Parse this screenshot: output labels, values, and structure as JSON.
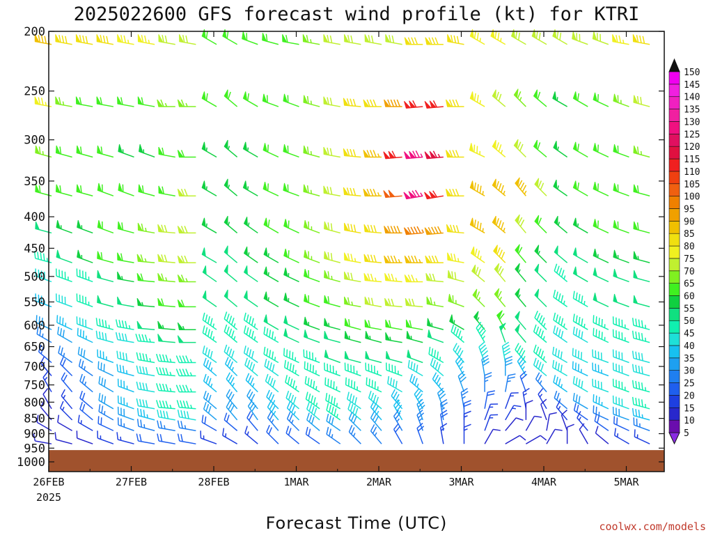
{
  "title": "2025022600 GFS forecast wind profile (kt) for KTRI",
  "credit": "coolwx.com/models",
  "chart_data": {
    "type": "wind-barb-time-height",
    "title": "2025022600 GFS forecast wind profile (kt) for KTRI",
    "xlabel": "Forecast Time (UTC)",
    "ylabel": "",
    "x_range_days": [
      "2025-02-26T00Z",
      "2025-03-05T12Z"
    ],
    "x_ticks": [
      {
        "label": "26FEB",
        "sub": "2025"
      },
      {
        "label": "27FEB",
        "sub": ""
      },
      {
        "label": "28FEB",
        "sub": ""
      },
      {
        "label": "1MAR",
        "sub": ""
      },
      {
        "label": "2MAR",
        "sub": ""
      },
      {
        "label": "3MAR",
        "sub": ""
      },
      {
        "label": "4MAR",
        "sub": ""
      },
      {
        "label": "5MAR",
        "sub": ""
      }
    ],
    "y_ticks": [
      "200",
      "250",
      "300",
      "350",
      "400",
      "450",
      "500",
      "550",
      "600",
      "650",
      "700",
      "750",
      "800",
      "850",
      "900",
      "950",
      "1000"
    ],
    "y_scale": "log-pressure",
    "ylim_hPa": [
      200,
      1000
    ],
    "colorbar": {
      "units": "kt",
      "labels": [
        "5",
        "10",
        "15",
        "20",
        "25",
        "30",
        "35",
        "40",
        "45",
        "50",
        "55",
        "60",
        "65",
        "70",
        "75",
        "80",
        "85",
        "90",
        "95",
        "100",
        "105",
        "110",
        "115",
        "120",
        "125",
        "130",
        "135",
        "140",
        "145",
        "150"
      ],
      "colors": [
        "#8a2be2",
        "#6a0dad",
        "#2828cc",
        "#1e3fe0",
        "#1f5fee",
        "#1f7ff0",
        "#1ea0f0",
        "#17c0f0",
        "#1ee0d8",
        "#10f0b0",
        "#10e080",
        "#10d040",
        "#40f020",
        "#80f020",
        "#c0f030",
        "#f0f020",
        "#f0e010",
        "#f0c000",
        "#f0a000",
        "#f08000",
        "#f06010",
        "#f04010",
        "#f02020",
        "#e01040",
        "#e01060",
        "#f01080",
        "#f020a0",
        "#f020c0",
        "#f020e0",
        "#f000f0"
      ]
    },
    "terrain_color": "#a0522d",
    "surface_pressure_hPa": 957,
    "levels_hPa": [
      210,
      265,
      320,
      370,
      425,
      475,
      510,
      560,
      610,
      640,
      690,
      725,
      770,
      820,
      855,
      890,
      935,
      955
    ],
    "x_sample_days": [
      0,
      0.25,
      0.5,
      0.75,
      1,
      1.25,
      1.5,
      1.75,
      2,
      2.25,
      2.5,
      2.75,
      3,
      3.25,
      3.5,
      3.75,
      4,
      4.25,
      4.5,
      4.75,
      5,
      5.25,
      5.5,
      5.75,
      6,
      6.25,
      6.5,
      6.75,
      7,
      7.25,
      7.5
    ],
    "wind_speed_kt": [
      [
        85,
        80,
        80,
        80,
        75,
        75,
        70,
        70,
        60,
        60,
        60,
        60,
        60,
        65,
        70,
        70,
        70,
        70,
        80,
        80,
        80,
        75,
        75,
        70,
        70,
        70,
        70,
        70,
        75,
        80,
        95
      ],
      [
        75,
        65,
        60,
        60,
        60,
        60,
        65,
        65,
        60,
        60,
        60,
        60,
        60,
        65,
        70,
        80,
        80,
        90,
        110,
        110,
        80,
        75,
        70,
        65,
        60,
        55,
        60,
        60,
        65,
        70,
        80
      ],
      [
        65,
        60,
        60,
        60,
        55,
        55,
        60,
        60,
        55,
        55,
        55,
        60,
        60,
        65,
        70,
        80,
        85,
        110,
        125,
        115,
        80,
        75,
        75,
        70,
        60,
        55,
        60,
        60,
        60,
        65,
        70
      ],
      [
        60,
        60,
        60,
        60,
        60,
        60,
        60,
        70,
        55,
        55,
        55,
        60,
        60,
        65,
        70,
        80,
        85,
        100,
        125,
        110,
        80,
        85,
        85,
        85,
        70,
        55,
        60,
        60,
        60,
        60,
        65
      ],
      [
        50,
        55,
        55,
        60,
        60,
        65,
        70,
        70,
        55,
        55,
        55,
        60,
        60,
        65,
        70,
        80,
        80,
        90,
        95,
        90,
        80,
        85,
        85,
        70,
        60,
        55,
        55,
        60,
        60,
        60,
        60
      ],
      [
        45,
        50,
        55,
        60,
        60,
        65,
        70,
        70,
        50,
        50,
        55,
        55,
        60,
        65,
        70,
        75,
        80,
        85,
        85,
        80,
        75,
        75,
        80,
        60,
        55,
        50,
        50,
        55,
        55,
        55,
        55
      ],
      [
        40,
        45,
        45,
        50,
        55,
        60,
        65,
        65,
        50,
        50,
        50,
        55,
        55,
        60,
        65,
        70,
        75,
        75,
        75,
        70,
        70,
        70,
        70,
        55,
        50,
        45,
        50,
        50,
        50,
        50,
        50
      ],
      [
        35,
        40,
        45,
        50,
        50,
        55,
        60,
        60,
        50,
        50,
        50,
        55,
        55,
        60,
        60,
        65,
        70,
        70,
        70,
        65,
        65,
        65,
        65,
        55,
        50,
        45,
        45,
        50,
        50,
        50,
        50
      ],
      [
        30,
        35,
        40,
        45,
        45,
        50,
        55,
        55,
        45,
        45,
        45,
        50,
        50,
        55,
        55,
        60,
        60,
        60,
        60,
        55,
        55,
        55,
        60,
        50,
        45,
        45,
        45,
        45,
        45,
        45,
        50
      ],
      [
        25,
        30,
        35,
        40,
        40,
        45,
        50,
        50,
        45,
        45,
        45,
        45,
        50,
        50,
        50,
        55,
        55,
        55,
        55,
        50,
        45,
        45,
        50,
        50,
        45,
        40,
        40,
        45,
        45,
        45,
        45
      ],
      [
        20,
        25,
        30,
        35,
        40,
        45,
        45,
        45,
        40,
        40,
        40,
        45,
        45,
        45,
        50,
        50,
        50,
        50,
        50,
        45,
        40,
        40,
        40,
        45,
        45,
        40,
        40,
        40,
        40,
        40,
        45
      ],
      [
        15,
        20,
        25,
        30,
        35,
        40,
        45,
        45,
        35,
        35,
        40,
        40,
        45,
        45,
        45,
        45,
        45,
        45,
        40,
        40,
        35,
        30,
        30,
        35,
        40,
        40,
        35,
        35,
        40,
        40,
        45
      ],
      [
        15,
        20,
        25,
        30,
        35,
        40,
        45,
        45,
        35,
        35,
        35,
        40,
        45,
        45,
        45,
        45,
        45,
        40,
        35,
        35,
        30,
        25,
        25,
        20,
        25,
        35,
        40,
        40,
        45,
        45,
        45
      ],
      [
        10,
        15,
        20,
        30,
        35,
        40,
        45,
        45,
        30,
        30,
        30,
        35,
        40,
        45,
        45,
        40,
        40,
        35,
        35,
        30,
        25,
        20,
        15,
        15,
        15,
        25,
        30,
        35,
        40,
        45,
        45
      ],
      [
        10,
        15,
        20,
        25,
        30,
        35,
        40,
        40,
        30,
        30,
        30,
        35,
        35,
        40,
        45,
        40,
        35,
        35,
        30,
        25,
        20,
        15,
        15,
        10,
        10,
        15,
        20,
        25,
        30,
        35,
        40
      ],
      [
        10,
        10,
        15,
        20,
        25,
        25,
        25,
        25,
        20,
        20,
        20,
        25,
        25,
        30,
        30,
        30,
        30,
        25,
        25,
        20,
        15,
        15,
        10,
        10,
        10,
        10,
        15,
        20,
        20,
        25,
        25
      ],
      [
        10,
        10,
        10,
        15,
        15,
        20,
        20,
        20,
        15,
        15,
        15,
        20,
        20,
        20,
        25,
        25,
        25,
        20,
        20,
        15,
        15,
        10,
        10,
        10,
        10,
        10,
        10,
        10,
        15,
        15,
        20
      ],
      [
        5,
        5,
        10,
        10,
        10,
        15,
        15,
        15,
        10,
        10,
        10,
        10,
        15,
        15,
        15,
        15,
        15,
        15,
        15,
        10,
        10,
        10,
        5,
        5,
        5,
        5,
        5,
        10,
        10,
        10,
        10
      ]
    ],
    "wind_direction_deg": [
      [
        280,
        280,
        280,
        280,
        280,
        280,
        280,
        280,
        300,
        300,
        290,
        285,
        280,
        280,
        280,
        280,
        280,
        280,
        270,
        270,
        280,
        300,
        300,
        300,
        300,
        300,
        290,
        290,
        280,
        280,
        270
      ],
      [
        280,
        280,
        280,
        280,
        280,
        280,
        270,
        270,
        300,
        310,
        300,
        290,
        290,
        285,
        280,
        275,
        270,
        270,
        265,
        265,
        270,
        300,
        310,
        315,
        310,
        300,
        300,
        295,
        290,
        285,
        280
      ],
      [
        285,
        285,
        285,
        285,
        290,
        290,
        280,
        270,
        300,
        310,
        300,
        295,
        290,
        285,
        280,
        275,
        270,
        265,
        265,
        265,
        270,
        295,
        310,
        315,
        310,
        305,
        300,
        295,
        290,
        285,
        280
      ],
      [
        285,
        285,
        285,
        290,
        290,
        285,
        280,
        270,
        300,
        310,
        300,
        295,
        290,
        285,
        280,
        275,
        270,
        265,
        260,
        260,
        270,
        300,
        310,
        320,
        315,
        305,
        300,
        295,
        290,
        285,
        280
      ],
      [
        285,
        290,
        290,
        290,
        285,
        280,
        275,
        270,
        300,
        310,
        305,
        300,
        295,
        290,
        285,
        280,
        275,
        270,
        265,
        265,
        275,
        300,
        310,
        320,
        315,
        310,
        300,
        295,
        290,
        285,
        280
      ],
      [
        285,
        290,
        290,
        285,
        280,
        275,
        275,
        270,
        300,
        310,
        305,
        300,
        295,
        290,
        285,
        280,
        275,
        270,
        270,
        270,
        280,
        305,
        315,
        320,
        315,
        310,
        300,
        295,
        290,
        285,
        280
      ],
      [
        290,
        290,
        290,
        285,
        280,
        275,
        275,
        270,
        305,
        310,
        305,
        300,
        295,
        290,
        285,
        280,
        275,
        275,
        270,
        275,
        285,
        310,
        320,
        320,
        315,
        310,
        300,
        295,
        290,
        285,
        285
      ],
      [
        290,
        290,
        290,
        285,
        280,
        275,
        275,
        270,
        305,
        310,
        305,
        300,
        295,
        290,
        285,
        280,
        280,
        275,
        275,
        280,
        290,
        315,
        320,
        320,
        315,
        305,
        300,
        295,
        290,
        285,
        285
      ],
      [
        295,
        295,
        290,
        285,
        280,
        275,
        275,
        270,
        305,
        310,
        305,
        300,
        295,
        290,
        285,
        285,
        280,
        280,
        280,
        285,
        300,
        320,
        330,
        320,
        315,
        305,
        300,
        295,
        290,
        285,
        285
      ],
      [
        300,
        300,
        295,
        285,
        280,
        275,
        275,
        270,
        305,
        310,
        305,
        300,
        295,
        290,
        285,
        285,
        285,
        280,
        285,
        290,
        310,
        330,
        340,
        320,
        310,
        305,
        300,
        295,
        290,
        285,
        285
      ],
      [
        310,
        305,
        300,
        290,
        285,
        280,
        275,
        270,
        305,
        310,
        305,
        300,
        295,
        290,
        290,
        285,
        285,
        285,
        290,
        300,
        320,
        340,
        350,
        320,
        310,
        300,
        295,
        290,
        290,
        285,
        285
      ],
      [
        320,
        315,
        305,
        295,
        285,
        280,
        275,
        270,
        310,
        315,
        310,
        305,
        300,
        295,
        290,
        290,
        290,
        290,
        300,
        310,
        330,
        350,
        360,
        330,
        310,
        300,
        295,
        290,
        290,
        285,
        285
      ],
      [
        330,
        320,
        310,
        300,
        290,
        280,
        275,
        270,
        310,
        320,
        315,
        310,
        305,
        300,
        295,
        295,
        295,
        300,
        310,
        320,
        340,
        360,
        10,
        340,
        320,
        305,
        300,
        290,
        290,
        285,
        285
      ],
      [
        330,
        320,
        310,
        300,
        290,
        280,
        275,
        275,
        310,
        320,
        320,
        315,
        310,
        305,
        300,
        305,
        310,
        320,
        330,
        340,
        350,
        10,
        20,
        350,
        330,
        310,
        300,
        295,
        290,
        285,
        285
      ],
      [
        320,
        315,
        310,
        300,
        290,
        285,
        280,
        280,
        310,
        320,
        325,
        320,
        315,
        310,
        305,
        310,
        320,
        330,
        340,
        350,
        360,
        20,
        30,
        360,
        340,
        320,
        305,
        295,
        290,
        285,
        285
      ],
      [
        300,
        300,
        300,
        295,
        290,
        285,
        280,
        280,
        300,
        310,
        320,
        320,
        315,
        310,
        305,
        315,
        320,
        330,
        340,
        350,
        360,
        20,
        40,
        30,
        10,
        340,
        320,
        305,
        295,
        290,
        285
      ],
      [
        280,
        285,
        290,
        290,
        285,
        280,
        280,
        280,
        290,
        300,
        310,
        315,
        310,
        305,
        305,
        315,
        320,
        330,
        340,
        350,
        360,
        30,
        60,
        60,
        30,
        360,
        330,
        310,
        300,
        295,
        290
      ],
      [
        260,
        270,
        280,
        285,
        280,
        275,
        275,
        275,
        280,
        290,
        300,
        305,
        305,
        300,
        300,
        310,
        320,
        330,
        340,
        350,
        360,
        40,
        80,
        90,
        60,
        10,
        340,
        320,
        310,
        300,
        290
      ]
    ]
  }
}
